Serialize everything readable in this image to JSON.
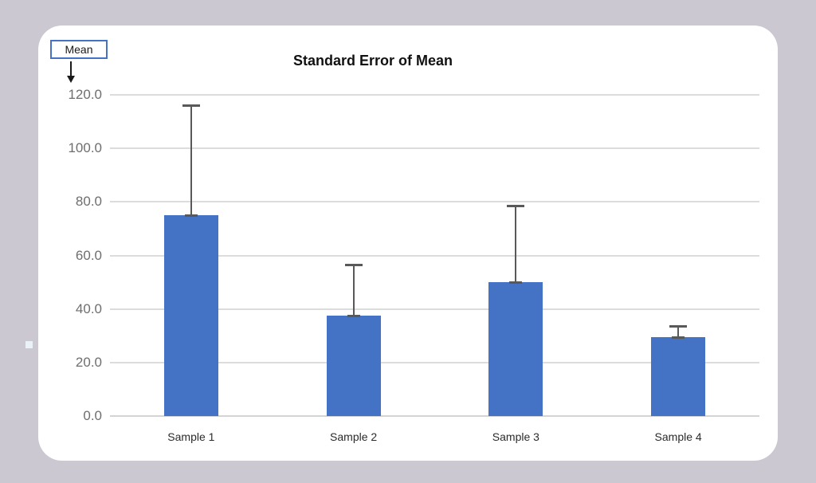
{
  "page": {
    "background_color": "#CBC8D2",
    "card_color": "#FFFFFF"
  },
  "annotation": {
    "label": "Mean",
    "arrow_icon": "down-arrow",
    "box_border_color": "#4472C4"
  },
  "chart_data": {
    "type": "bar",
    "title": "Standard Error of Mean",
    "categories": [
      "Sample 1",
      "Sample 2",
      "Sample 3",
      "Sample 4"
    ],
    "series": [
      {
        "name": "Mean",
        "values": [
          75,
          37.5,
          50,
          29.5
        ]
      }
    ],
    "error_bars": {
      "direction": "plus",
      "plus": [
        41,
        19,
        28.5,
        4
      ]
    },
    "xlabel": "",
    "ylabel": "",
    "ylim": [
      0,
      120
    ],
    "ytick_step": 20,
    "ytick_labels": [
      "0.0",
      "20.0",
      "40.0",
      "60.0",
      "80.0",
      "100.0",
      "120.0"
    ],
    "grid": true,
    "legend": "none",
    "bar_color": "#4472C4",
    "error_bar_color": "#595959",
    "gridline_color": "#DCDCDC",
    "tick_label_color": "#6E6E6E",
    "category_label_color": "#2B2B2B",
    "title_color": "#111111"
  }
}
